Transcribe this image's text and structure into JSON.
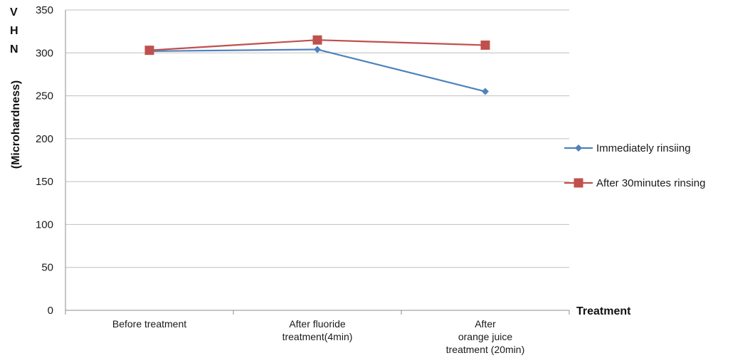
{
  "chart_data": {
    "type": "line",
    "categories": [
      [
        "Before treatment"
      ],
      [
        "After fluoride",
        "treatment(4min)"
      ],
      [
        "After",
        "orange juice",
        "treatment (20min)"
      ]
    ],
    "series": [
      {
        "name": "Immediately rinsiing",
        "values": [
          302,
          304,
          255
        ],
        "color": "#4f81bd",
        "marker": "diamond"
      },
      {
        "name": "After 30minutes rinsing",
        "values": [
          303,
          315,
          309
        ],
        "color": "#c0504d",
        "marker": "square"
      }
    ],
    "ylim": [
      0,
      350
    ],
    "yticks": [
      0,
      50,
      100,
      150,
      200,
      250,
      300,
      350
    ],
    "ylabel_letters": [
      "V",
      "H",
      "N"
    ],
    "ylabel": "(Microhardness)",
    "xlabel": "Treatment",
    "grid": true,
    "legend": "right"
  }
}
